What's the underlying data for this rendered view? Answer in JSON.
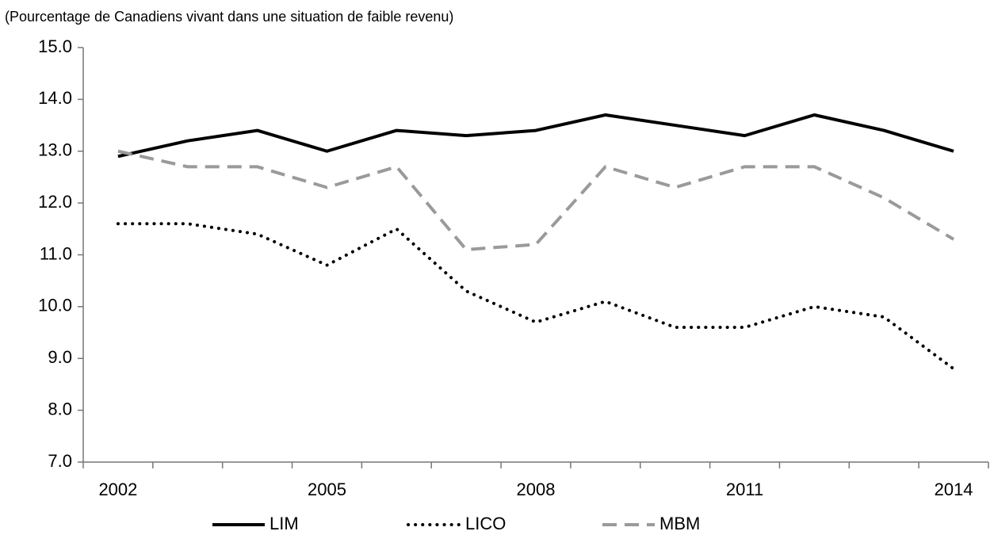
{
  "chart_data": {
    "type": "line",
    "title": "(Pourcentage de Canadiens vivant dans une situation de faible revenu)",
    "categories": [
      "2002",
      null,
      null,
      "2005",
      null,
      null,
      "2008",
      null,
      null,
      "2011",
      null,
      null,
      "2014"
    ],
    "series": [
      {
        "name": "LIM",
        "color": "#000000",
        "values": [
          12.9,
          13.2,
          13.4,
          13.0,
          13.4,
          13.3,
          13.4,
          13.7,
          13.5,
          13.3,
          13.7,
          13.4,
          13.0
        ]
      },
      {
        "name": "LICO",
        "color": "#000000",
        "values": [
          11.6,
          11.6,
          11.4,
          10.8,
          11.5,
          10.3,
          9.7,
          10.1,
          9.6,
          9.6,
          10.0,
          9.8,
          8.8
        ]
      },
      {
        "name": "MBM",
        "color": "#9a9a9a",
        "values": [
          13.0,
          12.7,
          12.7,
          12.3,
          12.7,
          11.1,
          11.2,
          12.7,
          12.3,
          12.7,
          12.7,
          12.1,
          11.3
        ]
      }
    ],
    "ylim": [
      7,
      15
    ],
    "yticks": [
      {
        "value": 7,
        "label": "7.0"
      },
      {
        "value": 8,
        "label": "8.0"
      },
      {
        "value": 9,
        "label": "9.0"
      },
      {
        "value": 10,
        "label": "10.0"
      },
      {
        "value": 11,
        "label": "11.0"
      },
      {
        "value": 12,
        "label": "12.0"
      },
      {
        "value": 13,
        "label": "13.0"
      },
      {
        "value": 14,
        "label": "14.0"
      },
      {
        "value": 15,
        "label": "15.0"
      }
    ],
    "grid": false,
    "legend": "bottom"
  }
}
